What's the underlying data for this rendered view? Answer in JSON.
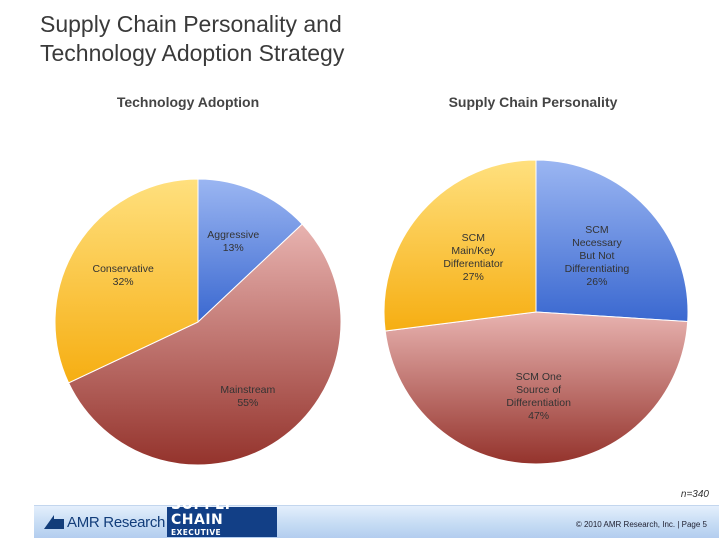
{
  "page": {
    "title_line1": "Supply Chain Personality and",
    "title_line2": "Technology Adoption Strategy",
    "sample_note": "n=340"
  },
  "footer": {
    "amr_logo_text": "AMR Research",
    "sce_line1": "SUPPLY CHAIN",
    "sce_line2": "EXECUTIVE CONFERENCE",
    "copyright": "© 2010 AMR Research, Inc. | Page 5"
  },
  "chart_data": [
    {
      "type": "pie",
      "title": "Technology Adoption",
      "slices": [
        {
          "label": "Aggressive",
          "value": 13,
          "display": "13%",
          "color_top": "#9bb6f2",
          "color_bottom": "#3a68d0"
        },
        {
          "label": "Mainstream",
          "value": 55,
          "display": "55%",
          "color_top": "#e8b3b0",
          "color_bottom": "#94332c"
        },
        {
          "label": "Conservative",
          "value": 32,
          "display": "32%",
          "color_top": "#ffe07e",
          "color_bottom": "#f6ae12"
        }
      ]
    },
    {
      "type": "pie",
      "title": "Supply Chain Personality",
      "slices": [
        {
          "label": "SCM Necessary But Not Differentiating",
          "lines": [
            "SCM",
            "Necessary",
            "But Not",
            "Differentiating"
          ],
          "value": 26,
          "display": "26%",
          "color_top": "#9bb6f2",
          "color_bottom": "#3a68d0"
        },
        {
          "label": "SCM One Source of Differentiation",
          "lines": [
            "SCM One",
            "Source of",
            "Differentiation"
          ],
          "value": 47,
          "display": "47%",
          "color_top": "#e8b3b0",
          "color_bottom": "#94332c"
        },
        {
          "label": "SCM Main/Key Differentiator",
          "lines": [
            "SCM",
            "Main/Key",
            "Differentiator"
          ],
          "value": 27,
          "display": "27%",
          "color_top": "#ffe07e",
          "color_bottom": "#f6ae12"
        }
      ]
    }
  ]
}
